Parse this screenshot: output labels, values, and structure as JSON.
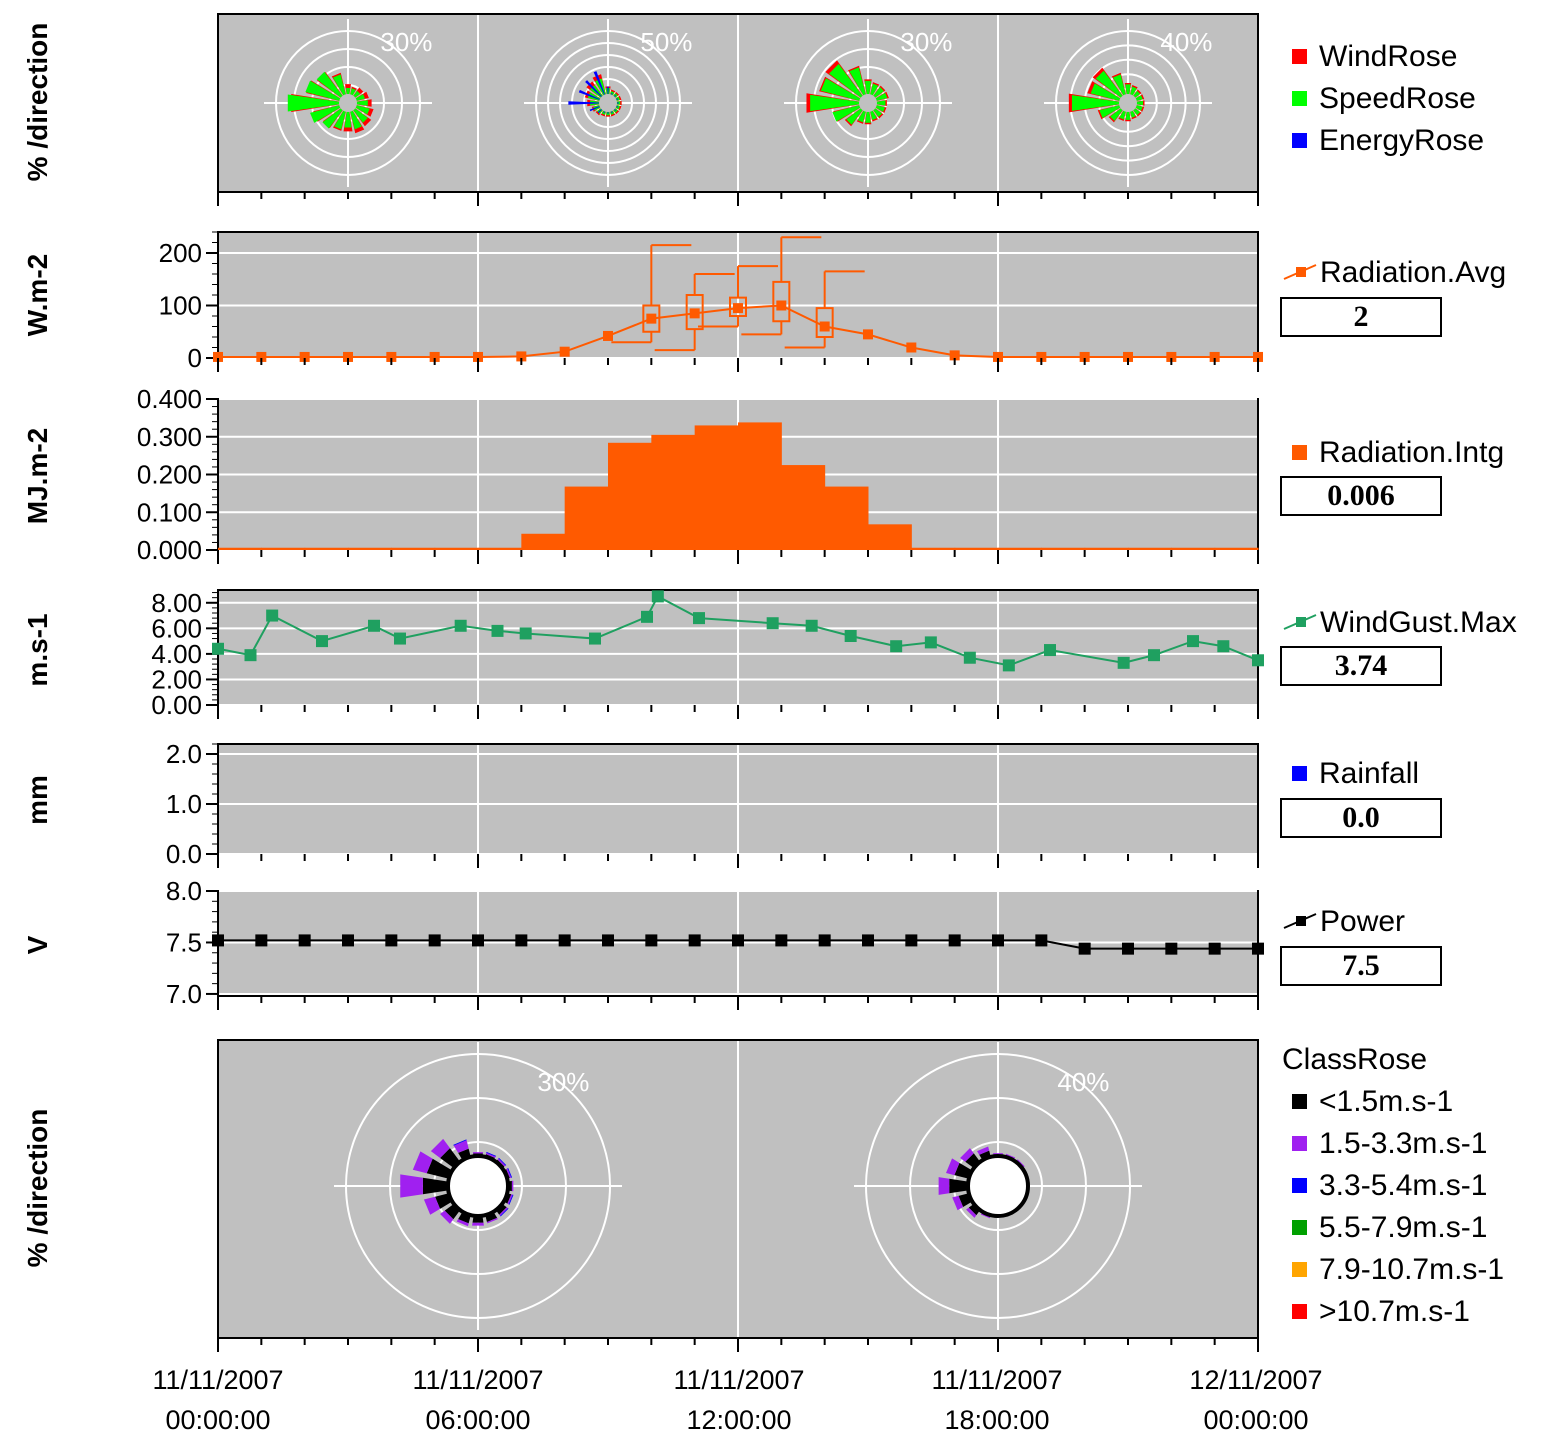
{
  "panels": {
    "rose1": {
      "ylabel": "% /direction",
      "legend": [
        {
          "label": "WindRose",
          "color": "#ff0000"
        },
        {
          "label": "SpeedRose",
          "color": "#00ff00"
        },
        {
          "label": "EnergyRose",
          "color": "#0000ff"
        }
      ]
    },
    "radavg": {
      "ylabel": "W.m-2",
      "legend": "Radiation.Avg",
      "color": "#ff5a00",
      "value": "2"
    },
    "radintg": {
      "ylabel": "MJ.m-2",
      "legend": "Radiation.Intg",
      "color": "#ff5a00",
      "value": "0.006"
    },
    "gust": {
      "ylabel": "m.s-1",
      "legend": "WindGust.Max",
      "color": "#1fa060",
      "value": "3.74"
    },
    "rain": {
      "ylabel": "mm",
      "legend": "Rainfall",
      "color": "#0000ff",
      "value": "0.0"
    },
    "power": {
      "ylabel": "V",
      "legend": "Power",
      "color": "#000000",
      "value": "7.5"
    },
    "rose2": {
      "ylabel": "% /direction",
      "title": "ClassRose",
      "legend": [
        {
          "label": "<1.5m.s-1",
          "color": "#000000"
        },
        {
          "label": "1.5-3.3m.s-1",
          "color": "#a020f0"
        },
        {
          "label": "3.3-5.4m.s-1",
          "color": "#0000ff"
        },
        {
          "label": "5.5-7.9m.s-1",
          "color": "#00a000"
        },
        {
          "label": "7.9-10.7m.s-1",
          "color": "#ffa500"
        },
        {
          "label": ">10.7m.s-1",
          "color": "#ff0000"
        }
      ]
    }
  },
  "x_ticks": [
    {
      "date": "11/11/2007",
      "time": "00:00:00"
    },
    {
      "date": "11/11/2007",
      "time": "06:00:00"
    },
    {
      "date": "11/11/2007",
      "time": "12:00:00"
    },
    {
      "date": "11/11/2007",
      "time": "18:00:00"
    },
    {
      "date": "12/11/2007",
      "time": "00:00:00"
    }
  ],
  "chart_data": [
    {
      "type": "rose",
      "name": "rose1",
      "roses": [
        {
          "scale_label": "30%",
          "max_pct": 30,
          "rings": 4,
          "center_hour": 3,
          "wind": [
            4,
            3,
            4,
            5,
            6,
            7,
            8,
            9,
            8,
            8,
            9,
            11,
            20,
            14,
            12,
            9
          ],
          "speed": [
            3,
            3,
            3,
            4,
            5,
            6,
            7,
            8,
            7,
            8,
            10,
            13,
            22,
            15,
            13,
            9
          ],
          "energy": [
            0,
            0,
            0,
            0,
            0,
            0,
            0,
            0,
            0,
            0,
            0,
            0,
            0,
            0,
            0,
            0
          ]
        },
        {
          "scale_label": "50%",
          "max_pct": 50,
          "rings": 6,
          "center_hour": 9,
          "wind": [
            5,
            3,
            3,
            3,
            3,
            3,
            3,
            3,
            3,
            3,
            4,
            5,
            8,
            10,
            12,
            14
          ],
          "speed": [
            5,
            3,
            3,
            3,
            3,
            3,
            3,
            3,
            3,
            3,
            4,
            5,
            7,
            9,
            10,
            12
          ],
          "energy": [
            6,
            2,
            2,
            2,
            2,
            2,
            2,
            2,
            2,
            2,
            4,
            8,
            22,
            16,
            16,
            18
          ]
        },
        {
          "scale_label": "30%",
          "max_pct": 30,
          "rings": 4,
          "center_hour": 15,
          "wind": [
            6,
            5,
            5,
            5,
            4,
            4,
            4,
            4,
            5,
            5,
            8,
            11,
            22,
            17,
            18,
            12
          ],
          "speed": [
            6,
            5,
            5,
            5,
            4,
            4,
            4,
            4,
            5,
            5,
            8,
            12,
            21,
            17,
            17,
            12
          ],
          "energy": [
            0,
            0,
            0,
            0,
            0,
            0,
            0,
            0,
            0,
            0,
            0,
            0,
            0,
            0,
            0,
            0
          ]
        },
        {
          "scale_label": "40%",
          "max_pct": 40,
          "rings": 5,
          "center_hour": 21,
          "wind": [
            6,
            5,
            4,
            4,
            4,
            4,
            4,
            4,
            5,
            5,
            8,
            12,
            28,
            18,
            19,
            12
          ],
          "speed": [
            6,
            5,
            4,
            4,
            4,
            4,
            4,
            4,
            5,
            5,
            8,
            12,
            27,
            17,
            18,
            12
          ],
          "energy": [
            0,
            0,
            0,
            0,
            0,
            0,
            0,
            0,
            0,
            0,
            0,
            0,
            0,
            0,
            0,
            0
          ]
        }
      ]
    },
    {
      "type": "line",
      "name": "Radiation.Avg",
      "x_hours": [
        0,
        1,
        2,
        3,
        4,
        5,
        6,
        7,
        8,
        9,
        10,
        11,
        12,
        13,
        14,
        15,
        16,
        17,
        18,
        19,
        20,
        21,
        22,
        23,
        24
      ],
      "values": [
        2,
        2,
        2,
        2,
        2,
        2,
        2,
        3,
        12,
        42,
        75,
        85,
        95,
        100,
        60,
        45,
        20,
        5,
        2,
        2,
        2,
        2,
        2,
        2,
        2
      ],
      "boxes": [
        {
          "x": 10,
          "low": 30,
          "q1": 50,
          "q3": 100,
          "high": 215
        },
        {
          "x": 11,
          "low": 15,
          "q1": 55,
          "q3": 120,
          "high": 160
        },
        {
          "x": 12,
          "low": 60,
          "q1": 80,
          "q3": 115,
          "high": 175
        },
        {
          "x": 13,
          "low": 45,
          "q1": 70,
          "q3": 145,
          "high": 230
        },
        {
          "x": 14,
          "low": 20,
          "q1": 40,
          "q3": 95,
          "high": 165
        }
      ],
      "ylim": [
        0,
        240
      ],
      "yticks": [
        "0",
        "100",
        "200"
      ]
    },
    {
      "type": "bar",
      "name": "Radiation.Intg",
      "x_hours": [
        0,
        1,
        2,
        3,
        4,
        5,
        6,
        7,
        8,
        9,
        10,
        11,
        12,
        13,
        14,
        15,
        16,
        17,
        18,
        19,
        20,
        21,
        22,
        23
      ],
      "values": [
        0.006,
        0.006,
        0.006,
        0.006,
        0.006,
        0.006,
        0.006,
        0.043,
        0.168,
        0.284,
        0.305,
        0.33,
        0.338,
        0.225,
        0.168,
        0.068,
        0.006,
        0.006,
        0.006,
        0.006,
        0.006,
        0.006,
        0.006,
        0.006
      ],
      "ylim": [
        0,
        0.4
      ],
      "yticks": [
        "0.000",
        "0.100",
        "0.200",
        "0.300",
        "0.400"
      ]
    },
    {
      "type": "line",
      "name": "WindGust.Max",
      "x_hours": [
        0,
        0.75,
        1.25,
        2.4,
        3.6,
        4.2,
        5.6,
        6.45,
        7.1,
        8.7,
        9.9,
        10.15,
        11.1,
        12.8,
        13.7,
        14.6,
        15.65,
        16.45,
        17.35,
        18.25,
        19.2,
        20.9,
        21.6,
        22.5,
        23.2,
        24
      ],
      "values": [
        4.4,
        3.9,
        7.0,
        5.0,
        6.2,
        5.2,
        6.2,
        5.8,
        5.6,
        5.2,
        6.9,
        8.5,
        6.8,
        6.4,
        6.2,
        5.4,
        4.6,
        4.9,
        3.7,
        3.1,
        4.3,
        3.3,
        3.9,
        5.0,
        4.6,
        3.5
      ],
      "ylim": [
        0,
        9
      ],
      "yticks": [
        "0.00",
        "2.00",
        "4.00",
        "6.00",
        "8.00"
      ]
    },
    {
      "type": "bar",
      "name": "Rainfall",
      "values": [],
      "ylim": [
        0,
        2.2
      ],
      "yticks": [
        "0.0",
        "1.0",
        "2.0"
      ]
    },
    {
      "type": "line",
      "name": "Power",
      "x_hours": [
        0,
        1,
        2,
        3,
        4,
        5,
        6,
        7,
        8,
        9,
        10,
        11,
        12,
        13,
        14,
        15,
        16,
        17,
        18,
        19,
        20,
        21,
        22,
        23,
        24
      ],
      "values": [
        7.52,
        7.52,
        7.52,
        7.52,
        7.52,
        7.52,
        7.52,
        7.52,
        7.52,
        7.52,
        7.52,
        7.52,
        7.52,
        7.52,
        7.52,
        7.52,
        7.52,
        7.52,
        7.52,
        7.52,
        7.44,
        7.44,
        7.44,
        7.44,
        7.44
      ],
      "ylim": [
        6.98,
        8.0
      ],
      "yticks": [
        "7.0",
        "7.5",
        "8.0"
      ]
    },
    {
      "type": "rose",
      "name": "ClassRose",
      "roses": [
        {
          "scale_label": "30%",
          "max_pct": 30,
          "rings": 3,
          "center_hour": 6,
          "calm": 10,
          "classes": [
            [
              1,
              1,
              1,
              1,
              1.5,
              1.5,
              2,
              2.5,
              2.5,
              3,
              4,
              5,
              9,
              8,
              6,
              3
            ],
            [
              0.5,
              0.5,
              0.5,
              0.5,
              0.5,
              0.5,
              0.5,
              0.5,
              1,
              1,
              2,
              4,
              8,
              5,
              4,
              3
            ],
            [
              0,
              0.3,
              0.3,
              0.3,
              0,
              0.3,
              0.3,
              0,
              0,
              0,
              0,
              0,
              0,
              0,
              0,
              0.3
            ]
          ]
        },
        {
          "scale_label": "40%",
          "max_pct": 40,
          "rings": 3,
          "center_hour": 18,
          "calm": 12,
          "classes": [
            [
              1,
              1,
              1,
              0.5,
              0.5,
              0,
              0,
              0,
              0.5,
              1,
              3,
              5,
              9,
              7,
              5,
              3
            ],
            [
              0.5,
              0.5,
              0.5,
              0.3,
              0.3,
              0,
              0,
              0.3,
              0.3,
              0.5,
              1.5,
              3,
              5,
              4,
              3,
              2
            ],
            [
              0,
              0,
              0,
              0,
              0,
              0,
              0,
              0,
              0,
              0,
              0,
              0,
              0,
              0,
              0,
              0
            ]
          ]
        }
      ]
    }
  ]
}
